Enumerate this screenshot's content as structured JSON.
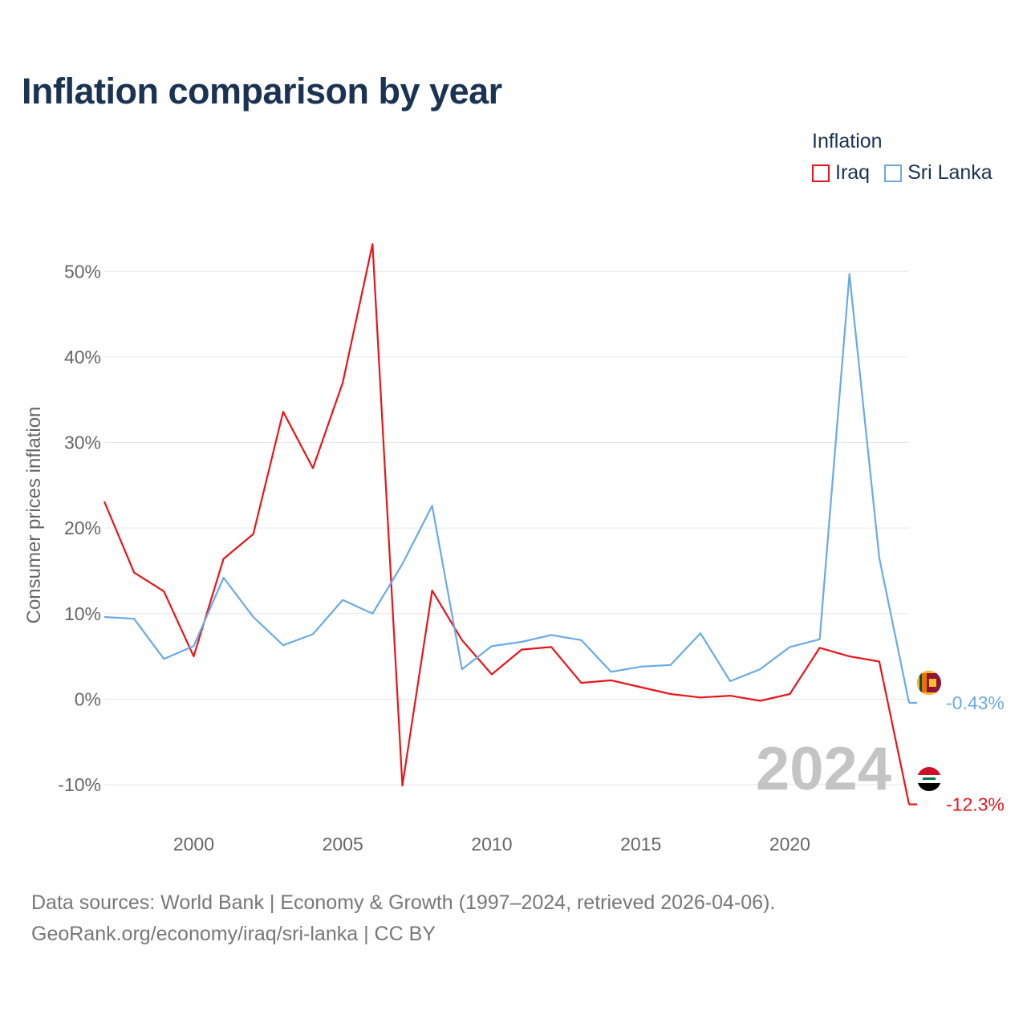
{
  "title": "Inflation comparison by year",
  "legend": {
    "title": "Inflation",
    "items": [
      {
        "label": "Iraq",
        "color": "#e8151b"
      },
      {
        "label": "Sri Lanka",
        "color": "#6aaae4"
      }
    ]
  },
  "source": {
    "line1": "Data sources: World Bank | Economy & Growth (1997–2024, retrieved 2026-04-06).",
    "line2": "GeoRank.org/economy/iraq/sri-lanka | CC BY"
  },
  "chart_data": {
    "type": "line",
    "title": "Inflation comparison by year",
    "xlabel": "",
    "ylabel": "Consumer prices inflation",
    "x": [
      1997,
      1998,
      1999,
      2000,
      2001,
      2002,
      2003,
      2004,
      2005,
      2006,
      2007,
      2008,
      2009,
      2010,
      2011,
      2012,
      2013,
      2014,
      2015,
      2016,
      2017,
      2018,
      2019,
      2020,
      2021,
      2022,
      2023,
      2024
    ],
    "xticks": [
      2000,
      2005,
      2010,
      2015,
      2020
    ],
    "xtick_labels": [
      "2000",
      "2005",
      "2010",
      "2015",
      "2020"
    ],
    "xlim": [
      1997,
      2024
    ],
    "ylim": [
      -13,
      55
    ],
    "yticks": [
      -10,
      0,
      10,
      20,
      30,
      40,
      50
    ],
    "ytick_labels": [
      "-10%",
      "0%",
      "10%",
      "20%",
      "30%",
      "40%",
      "50%"
    ],
    "grid": true,
    "legend_position": "top-right",
    "year_watermark": "2024",
    "series": [
      {
        "name": "Iraq",
        "color": "#e8151b",
        "end_label": "-12.3%",
        "values": [
          23.1,
          14.8,
          12.6,
          5.0,
          16.4,
          19.3,
          33.6,
          27.0,
          37.0,
          53.2,
          -10.1,
          12.7,
          6.9,
          2.9,
          5.8,
          6.1,
          1.9,
          2.2,
          1.4,
          0.6,
          0.2,
          0.4,
          -0.2,
          0.6,
          6.0,
          5.0,
          4.4,
          -12.3
        ]
      },
      {
        "name": "Sri Lanka",
        "color": "#6aaae4",
        "end_label": "-0.43%",
        "values": [
          9.6,
          9.4,
          4.7,
          6.2,
          14.2,
          9.6,
          6.3,
          7.6,
          11.6,
          10.0,
          15.8,
          22.6,
          3.5,
          6.2,
          6.7,
          7.5,
          6.9,
          3.2,
          3.8,
          4.0,
          7.7,
          2.1,
          3.5,
          6.1,
          7.0,
          49.7,
          16.5,
          -0.43
        ]
      }
    ]
  }
}
